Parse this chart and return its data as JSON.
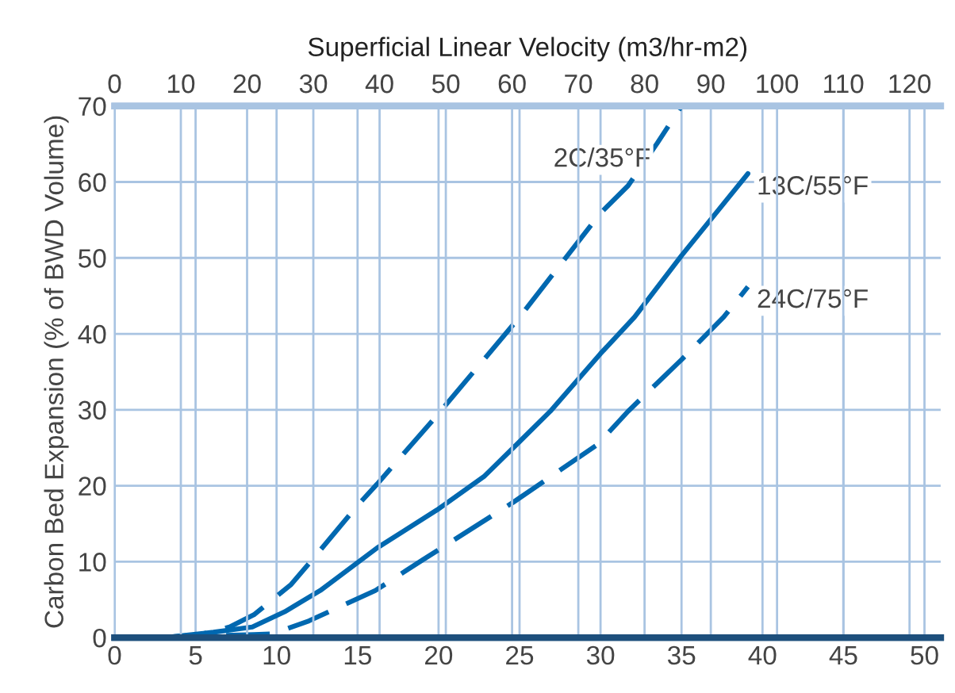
{
  "chart_data": {
    "type": "line",
    "x2label": "Superficial Linear Velocity (m3/hr-m2)",
    "ylabel": "Carbon Bed Expansion (% of BWD Volume)",
    "xlim": [
      0,
      51
    ],
    "xticks": [
      0,
      5,
      10,
      15,
      20,
      25,
      30,
      35,
      40,
      45,
      50
    ],
    "x2lim": [
      0,
      124.7
    ],
    "x2ticks": [
      0,
      10,
      20,
      30,
      40,
      50,
      60,
      70,
      80,
      90,
      100,
      110,
      120
    ],
    "ylim": [
      0,
      70
    ],
    "yticks": [
      0,
      10,
      20,
      30,
      40,
      50,
      60,
      70
    ],
    "grid": true,
    "series": [
      {
        "name": "2C/35°F",
        "color": "#0068b0",
        "line_style": "dashed",
        "x": [
          3.0,
          5.3,
          7.1,
          8.6,
          10.9,
          12.5,
          15.0,
          16.2,
          19.8,
          25.0,
          30.0,
          31.7,
          33.5,
          35.0
        ],
        "values": [
          0,
          0.4,
          1.4,
          3.0,
          7.0,
          11.0,
          17.4,
          20.2,
          29.0,
          42.2,
          55.9,
          59.5,
          65.1,
          70
        ]
      },
      {
        "name": "13C/55°F",
        "color": "#0068b0",
        "line_style": "solid",
        "x": [
          3.1,
          6.1,
          8.5,
          10.5,
          12.7,
          16.2,
          19.9,
          22.8,
          25.0,
          26.9,
          30.0,
          32.1,
          35.0,
          39.1
        ],
        "values": [
          0,
          0.7,
          1.4,
          3.4,
          6.2,
          11.8,
          16.8,
          21.2,
          25.8,
          29.8,
          37.4,
          42.2,
          50.3,
          61.1
        ]
      },
      {
        "name": "24C/75°F",
        "color": "#0068b0",
        "line_style": "dashed",
        "x": [
          3.0,
          8.6,
          9.8,
          12.0,
          16.1,
          19.0,
          24.6,
          29.8,
          31.7,
          35.0,
          37.6,
          39.1
        ],
        "values": [
          0,
          0.4,
          0.5,
          2.2,
          6.2,
          10.2,
          17.8,
          25.4,
          29.8,
          36.6,
          42.2,
          46.2
        ]
      }
    ]
  }
}
